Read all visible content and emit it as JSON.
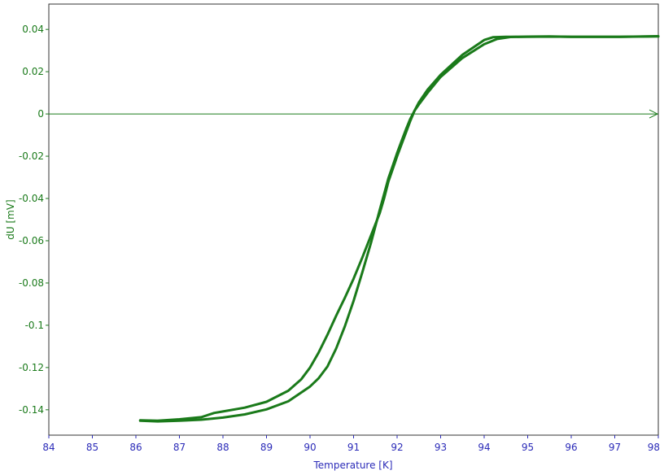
{
  "chart_data": {
    "type": "line",
    "title": "",
    "xlabel": "Temperature [K]",
    "ylabel": "dU [mV]",
    "xlim": [
      84,
      98
    ],
    "ylim": [
      -0.152,
      0.052
    ],
    "xticks": [
      84,
      85,
      86,
      87,
      88,
      89,
      90,
      91,
      92,
      93,
      94,
      95,
      96,
      97,
      98
    ],
    "xtick_labels": [
      "84",
      "85",
      "86",
      "87",
      "88",
      "89",
      "90",
      "91",
      "92",
      "93",
      "94",
      "95",
      "96",
      "97",
      "98"
    ],
    "yticks": [
      0.04,
      0.02,
      0,
      -0.02,
      -0.04,
      -0.06,
      -0.08,
      -0.1,
      -0.12,
      -0.14
    ],
    "ytick_labels": [
      "0.04",
      "0.02",
      "0",
      "-0.02",
      "-0.04",
      "-0.06",
      "-0.08",
      "-0.1",
      "-0.12",
      "-0.14"
    ],
    "grid": false,
    "zero_line": true,
    "colors": {
      "series": "#1a7a1a",
      "y_axis_text": "#1a7a1a",
      "x_axis_text": "#2b2bb8"
    },
    "series": [
      {
        "x": [
          86.1,
          86.5,
          87.0,
          87.5,
          87.8,
          88.0,
          88.5,
          89.0,
          89.5,
          89.8,
          90.0,
          90.2,
          90.4,
          90.6,
          90.8,
          91.0,
          91.2,
          91.4,
          91.6,
          91.7,
          91.8,
          91.9,
          92.0,
          92.1,
          92.2,
          92.3,
          92.4,
          92.5,
          92.7,
          93.0,
          93.5,
          94.0,
          94.2,
          94.5,
          95.0,
          95.5,
          96.0,
          97.0,
          98.0
        ],
        "y": [
          -0.145,
          -0.1452,
          -0.1445,
          -0.1435,
          -0.1415,
          -0.1408,
          -0.139,
          -0.1362,
          -0.131,
          -0.1255,
          -0.12,
          -0.1128,
          -0.1045,
          -0.0955,
          -0.087,
          -0.078,
          -0.068,
          -0.0575,
          -0.047,
          -0.04,
          -0.032,
          -0.026,
          -0.02,
          -0.0145,
          -0.009,
          -0.0035,
          0.0015,
          0.0055,
          0.0115,
          0.0185,
          0.028,
          0.035,
          0.0363,
          0.0365,
          0.0365,
          0.0366,
          0.0365,
          0.0365,
          0.0367
        ]
      },
      {
        "x": [
          86.1,
          86.5,
          87.0,
          87.5,
          88.0,
          88.5,
          89.0,
          89.5,
          90.0,
          90.2,
          90.4,
          90.6,
          90.8,
          91.0,
          91.2,
          91.4,
          91.6,
          91.7,
          91.8,
          91.9,
          92.0,
          92.1,
          92.2,
          92.3,
          92.4,
          92.5,
          92.7,
          93.0,
          93.5,
          94.0,
          94.3,
          94.6,
          95.0,
          95.5,
          96.0,
          97.0,
          98.0
        ],
        "y": [
          -0.1452,
          -0.1455,
          -0.1452,
          -0.1447,
          -0.1437,
          -0.1422,
          -0.1398,
          -0.136,
          -0.129,
          -0.125,
          -0.1195,
          -0.111,
          -0.1005,
          -0.0885,
          -0.075,
          -0.061,
          -0.0455,
          -0.038,
          -0.0305,
          -0.0245,
          -0.0185,
          -0.013,
          -0.0075,
          -0.0025,
          0.0015,
          0.0045,
          0.01,
          0.0175,
          0.0265,
          0.033,
          0.0355,
          0.0364,
          0.0366,
          0.0367,
          0.0365,
          0.0365,
          0.0368
        ]
      }
    ]
  }
}
